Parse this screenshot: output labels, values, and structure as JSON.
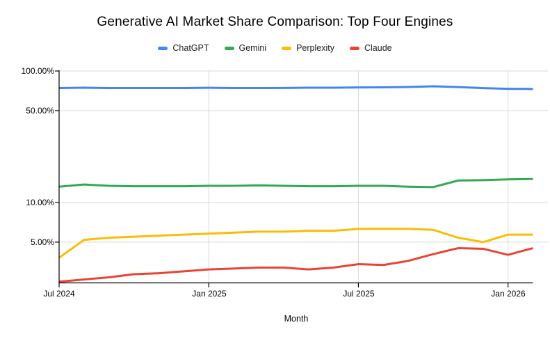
{
  "chart_data": {
    "type": "line",
    "title": "Generative AI Market Share Comparison: Top Four Engines",
    "xlabel": "Month",
    "ylabel": "",
    "y_scale": "log",
    "y_unit": "%",
    "ylim": [
      2.45,
      100
    ],
    "grid": true,
    "legend_position": "top",
    "gridline_color": "#d9d9d9",
    "axis_color": "#000000",
    "x": [
      "Jul 2024",
      "Aug 2024",
      "Sep 2024",
      "Oct 2024",
      "Nov 2024",
      "Dec 2024",
      "Jan 2025",
      "Feb 2025",
      "Mar 2025",
      "Apr 2025",
      "May 2025",
      "Jun 2025",
      "Jul 2025",
      "Aug 2025",
      "Sep 2025",
      "Oct 2025",
      "Nov 2025",
      "Dec 2025",
      "Jan 2026",
      "Feb 2026"
    ],
    "x_tick_labels": [
      "Jul 2024",
      "Jan 2025",
      "Jul 2025",
      "Jan 2026"
    ],
    "x_tick_indices": [
      0,
      6,
      12,
      18
    ],
    "y_ticks": [
      {
        "label": "100.00%",
        "value": 100
      },
      {
        "label": "50.00%",
        "value": 50
      },
      {
        "label": "10.00%",
        "value": 10
      },
      {
        "label": "5.00%",
        "value": 5
      }
    ],
    "series": [
      {
        "name": "ChatGPT",
        "color": "#4285F4",
        "values": [
          74.2,
          74.6,
          74.2,
          74.2,
          74.2,
          74.2,
          74.5,
          74.2,
          74.2,
          74.3,
          74.6,
          74.6,
          75.0,
          75.1,
          75.6,
          76.5,
          75.5,
          74.1,
          73.2,
          73.0
        ]
      },
      {
        "name": "Gemini",
        "color": "#34A853",
        "values": [
          13.2,
          13.7,
          13.4,
          13.3,
          13.3,
          13.3,
          13.4,
          13.4,
          13.5,
          13.4,
          13.3,
          13.3,
          13.4,
          13.4,
          13.2,
          13.1,
          14.7,
          14.8,
          15.0,
          15.1
        ]
      },
      {
        "name": "Perplexity",
        "color": "#FBBC04",
        "values": [
          3.8,
          5.2,
          5.4,
          5.5,
          5.6,
          5.7,
          5.8,
          5.9,
          6.0,
          6.0,
          6.1,
          6.1,
          6.3,
          6.3,
          6.3,
          6.2,
          5.4,
          5.0,
          5.7,
          5.7
        ]
      },
      {
        "name": "Claude",
        "color": "#EA4335",
        "values": [
          2.5,
          2.6,
          2.7,
          2.85,
          2.9,
          3.0,
          3.1,
          3.15,
          3.2,
          3.2,
          3.1,
          3.2,
          3.4,
          3.35,
          3.6,
          4.05,
          4.5,
          4.45,
          4.0,
          4.5
        ]
      }
    ]
  }
}
